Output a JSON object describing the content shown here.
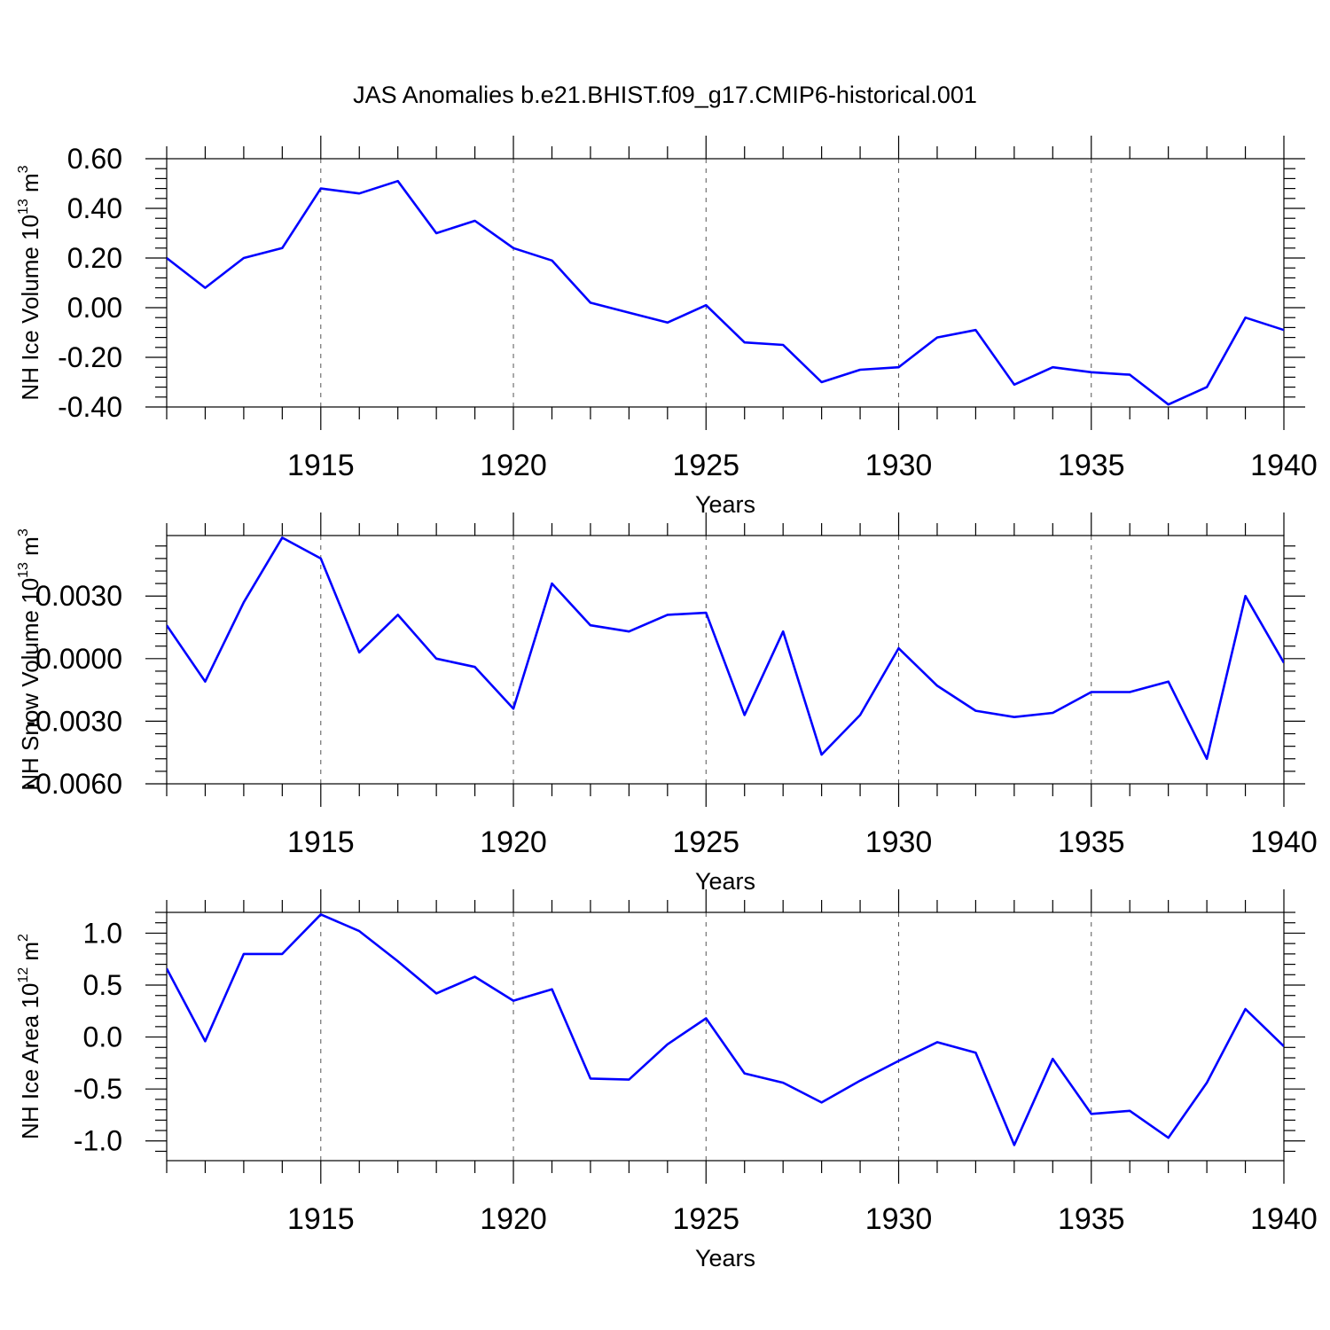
{
  "title": "JAS Anomalies b.e21.BHIST.f09_g17.CMIP6-historical.001",
  "chart_data": [
    {
      "type": "line",
      "ylabel": "NH Ice Volume 10",
      "ylabel_exp": "13",
      "ylabel_unit": " m",
      "ylabel_unit_exp": "3",
      "xlabel": "Years",
      "xlim": [
        1911,
        1940
      ],
      "ylim": [
        -0.4,
        0.6
      ],
      "yticks": [
        -0.4,
        -0.2,
        0.0,
        0.2,
        0.4,
        0.6
      ],
      "ytick_labels": [
        "-0.40",
        "-0.20",
        "0.00",
        "0.20",
        "0.40",
        "0.60"
      ],
      "xticks": [
        1915,
        1920,
        1925,
        1930,
        1935,
        1940
      ],
      "xtick_labels": [
        "1915",
        "1920",
        "1925",
        "1930",
        "1935",
        "1940"
      ],
      "series": [
        {
          "name": "NH Ice Volume",
          "color": "#0000ff",
          "x": [
            1911,
            1912,
            1913,
            1914,
            1915,
            1916,
            1917,
            1918,
            1919,
            1920,
            1921,
            1922,
            1923,
            1924,
            1925,
            1926,
            1927,
            1928,
            1929,
            1930,
            1931,
            1932,
            1933,
            1934,
            1935,
            1936,
            1937,
            1938,
            1939,
            1940
          ],
          "values": [
            0.2,
            0.08,
            0.2,
            0.24,
            0.48,
            0.46,
            0.51,
            0.3,
            0.35,
            0.24,
            0.19,
            0.02,
            -0.02,
            -0.06,
            0.01,
            -0.14,
            -0.15,
            -0.3,
            -0.25,
            -0.24,
            -0.12,
            -0.09,
            -0.31,
            -0.24,
            -0.26,
            -0.27,
            -0.39,
            -0.32,
            -0.04,
            -0.09
          ]
        }
      ]
    },
    {
      "type": "line",
      "ylabel": "NH Snow Volume 10",
      "ylabel_exp": "13",
      "ylabel_unit": " m",
      "ylabel_unit_exp": "3",
      "xlabel": "Years",
      "xlim": [
        1911,
        1940
      ],
      "ylim": [
        -0.006,
        0.0059
      ],
      "yticks": [
        -0.006,
        -0.003,
        0.0,
        0.003
      ],
      "ytick_labels": [
        "-0.0060",
        "-0.0030",
        "0.0000",
        "0.0030"
      ],
      "xticks": [
        1915,
        1920,
        1925,
        1930,
        1935,
        1940
      ],
      "xtick_labels": [
        "1915",
        "1920",
        "1925",
        "1930",
        "1935",
        "1940"
      ],
      "series": [
        {
          "name": "NH Snow Volume",
          "color": "#0000ff",
          "x": [
            1911,
            1912,
            1913,
            1914,
            1915,
            1916,
            1917,
            1918,
            1919,
            1920,
            1921,
            1922,
            1923,
            1924,
            1925,
            1926,
            1927,
            1928,
            1929,
            1930,
            1931,
            1932,
            1933,
            1934,
            1935,
            1936,
            1937,
            1938,
            1939,
            1940
          ],
          "values": [
            0.0016,
            -0.0011,
            0.0027,
            0.0058,
            0.0048,
            0.0003,
            0.0021,
            0.0,
            -0.0004,
            -0.0024,
            0.0036,
            0.0016,
            0.0013,
            0.0021,
            0.0022,
            -0.0027,
            0.0013,
            -0.0046,
            -0.0027,
            0.0005,
            -0.0013,
            -0.0025,
            -0.0028,
            -0.0026,
            -0.0016,
            -0.0016,
            -0.0011,
            -0.0048,
            0.003,
            -0.0002
          ]
        }
      ]
    },
    {
      "type": "line",
      "ylabel": "NH Ice Area 10",
      "ylabel_exp": "12",
      "ylabel_unit": " m",
      "ylabel_unit_exp": "2",
      "xlabel": "Years",
      "xlim": [
        1911,
        1940
      ],
      "ylim": [
        -1.19,
        1.2
      ],
      "yticks": [
        -1.0,
        -0.5,
        0.0,
        0.5,
        1.0
      ],
      "ytick_labels": [
        "-1.0",
        "-0.5",
        "0.0",
        "0.5",
        "1.0"
      ],
      "xticks": [
        1915,
        1920,
        1925,
        1930,
        1935,
        1940
      ],
      "xtick_labels": [
        "1915",
        "1920",
        "1925",
        "1930",
        "1935",
        "1940"
      ],
      "series": [
        {
          "name": "NH Ice Area",
          "color": "#0000ff",
          "x": [
            1911,
            1912,
            1913,
            1914,
            1915,
            1916,
            1917,
            1918,
            1919,
            1920,
            1921,
            1922,
            1923,
            1924,
            1925,
            1926,
            1927,
            1928,
            1929,
            1930,
            1931,
            1932,
            1933,
            1934,
            1935,
            1936,
            1937,
            1938,
            1939,
            1940
          ],
          "values": [
            0.66,
            -0.04,
            0.8,
            0.8,
            1.18,
            1.02,
            0.73,
            0.42,
            0.58,
            0.35,
            0.46,
            -0.4,
            -0.41,
            -0.07,
            0.18,
            -0.35,
            -0.44,
            -0.63,
            -0.42,
            -0.23,
            -0.05,
            -0.15,
            -1.04,
            -0.21,
            -0.74,
            -0.71,
            -0.97,
            -0.44,
            0.27,
            -0.09
          ]
        }
      ]
    }
  ]
}
